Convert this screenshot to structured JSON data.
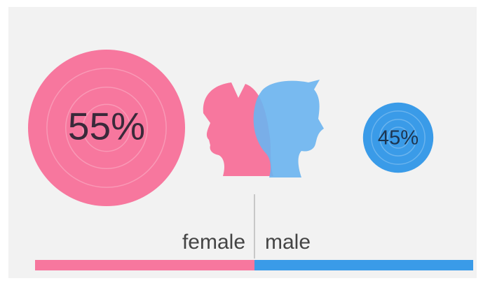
{
  "chart_data": {
    "type": "bubble",
    "categories": [
      "female",
      "male"
    ],
    "values": [
      55,
      45
    ],
    "value_labels": [
      "55%",
      "45%"
    ],
    "colors": [
      "#f7779e",
      "#3a9be8"
    ]
  }
}
